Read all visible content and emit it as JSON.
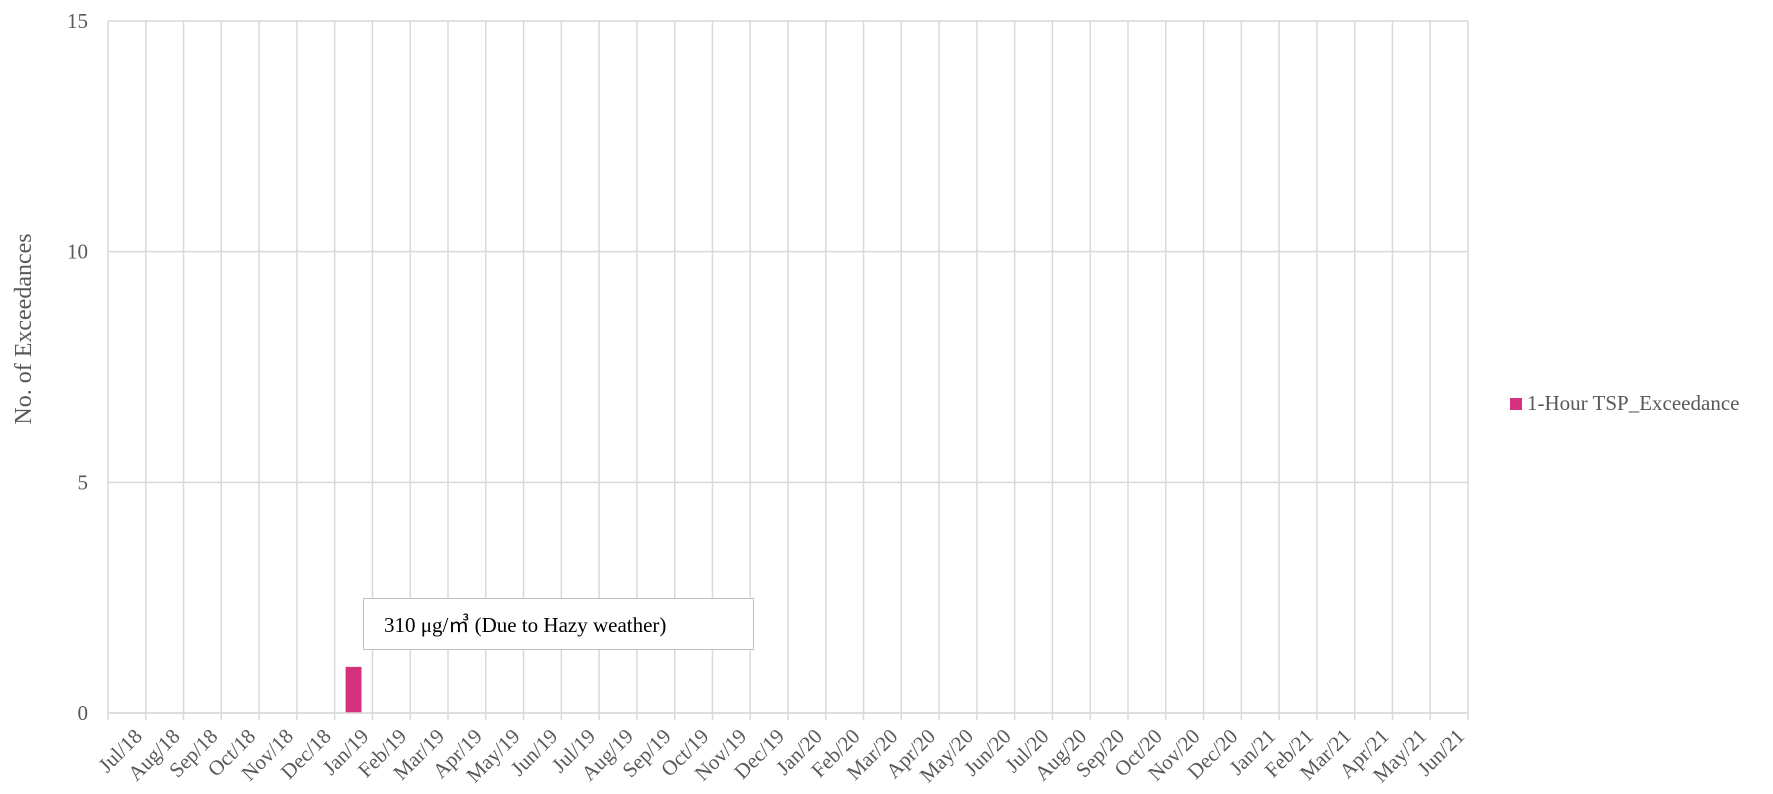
{
  "chart_data": {
    "type": "bar",
    "categories": [
      "Jul/18",
      "Aug/18",
      "Sep/18",
      "Oct/18",
      "Nov/18",
      "Dec/18",
      "Jan/19",
      "Feb/19",
      "Mar/19",
      "Apr/19",
      "May/19",
      "Jun/19",
      "Jul/19",
      "Aug/19",
      "Sep/19",
      "Oct/19",
      "Nov/19",
      "Dec/19",
      "Jan/20",
      "Feb/20",
      "Mar/20",
      "Apr/20",
      "May/20",
      "Jun/20",
      "Jul/20",
      "Aug/20",
      "Sep/20",
      "Oct/20",
      "Nov/20",
      "Dec/20",
      "Jan/21",
      "Feb/21",
      "Mar/21",
      "Apr/21",
      "May/21",
      "Jun/21"
    ],
    "series": [
      {
        "name": "1-Hour TSP_Exceedance",
        "color": "#d6317f",
        "values": [
          0,
          0,
          0,
          0,
          0,
          0,
          1,
          0,
          0,
          0,
          0,
          0,
          0,
          0,
          0,
          0,
          0,
          0,
          0,
          0,
          0,
          0,
          0,
          0,
          0,
          0,
          0,
          0,
          0,
          0,
          0,
          0,
          0,
          0,
          0,
          0
        ]
      }
    ],
    "ylabel": "No. of Exceedances",
    "ylim": [
      0,
      15
    ],
    "yticks": [
      "0",
      "5",
      "10",
      "15"
    ],
    "grid": true,
    "legend_position": "right",
    "annotation": "310 μg/㎥  (Due to Hazy weather)"
  }
}
